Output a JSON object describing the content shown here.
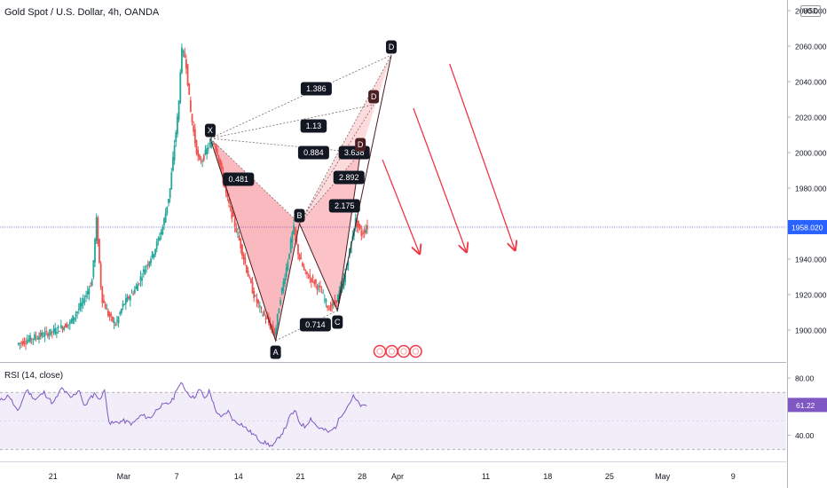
{
  "header": {
    "title": "Gold Spot / U.S. Dollar, 4h, OANDA",
    "currency": "USD",
    "rsi_title": "RSI (14, close)"
  },
  "chart_data": [
    {
      "type": "candlestick",
      "title": "Gold Spot / U.S. Dollar, 4h, OANDA",
      "y_axis": {
        "ticks": [
          "2080.000",
          "2060.000",
          "2040.000",
          "2020.000",
          "2000.000",
          "1980.000",
          "1960.000",
          "1940.000",
          "1920.000",
          "1900.000"
        ],
        "tick_values": [
          2080,
          2060,
          2040,
          2020,
          2000,
          1980,
          1960,
          1940,
          1920,
          1900
        ],
        "range": [
          1882,
          2086
        ]
      },
      "x_axis": {
        "ticks": [
          "21",
          "Mar",
          "7",
          "14",
          "21",
          "28",
          "Apr",
          "11",
          "18",
          "25",
          "May",
          "9"
        ],
        "tick_days": [
          -8,
          0,
          6,
          13,
          20,
          27,
          31,
          41,
          48,
          55,
          61,
          69
        ],
        "range_days": [
          -14,
          75
        ]
      },
      "last_price": "1958.020",
      "last_price_value": 1958.02,
      "price_path": [
        [
          -12.0,
          1892
        ],
        [
          -10.0,
          1896
        ],
        [
          -8.0,
          1899
        ],
        [
          -6.0,
          1904
        ],
        [
          -4.5,
          1916
        ],
        [
          -3.5,
          1928
        ],
        [
          -3.0,
          1962
        ],
        [
          -2.4,
          1918
        ],
        [
          -1.6,
          1908
        ],
        [
          -0.8,
          1903
        ],
        [
          0.0,
          1914
        ],
        [
          1.5,
          1924
        ],
        [
          2.5,
          1935
        ],
        [
          3.5,
          1944
        ],
        [
          4.5,
          1958
        ],
        [
          5.3,
          1978
        ],
        [
          5.8,
          2003
        ],
        [
          6.3,
          2025
        ],
        [
          6.6,
          2058
        ],
        [
          7.1,
          2053
        ],
        [
          7.6,
          2025
        ],
        [
          8.1,
          2008
        ],
        [
          8.6,
          1994
        ],
        [
          9.2,
          1998
        ],
        [
          9.7,
          2004
        ],
        [
          10.3,
          2006
        ],
        [
          10.8,
          1998
        ],
        [
          11.3,
          1985
        ],
        [
          11.8,
          1974
        ],
        [
          12.5,
          1962
        ],
        [
          13.2,
          1950
        ],
        [
          14.0,
          1934
        ],
        [
          14.8,
          1920
        ],
        [
          15.6,
          1911
        ],
        [
          16.4,
          1905
        ],
        [
          17.2,
          1897
        ],
        [
          17.8,
          1918
        ],
        [
          18.5,
          1935
        ],
        [
          19.3,
          1958
        ],
        [
          19.9,
          1942
        ],
        [
          20.6,
          1932
        ],
        [
          21.5,
          1928
        ],
        [
          22.4,
          1922
        ],
        [
          23.3,
          1912
        ],
        [
          24.1,
          1916
        ],
        [
          24.9,
          1926
        ],
        [
          25.6,
          1943
        ],
        [
          26.3,
          1962
        ],
        [
          27.0,
          1954
        ],
        [
          27.6,
          1958
        ]
      ],
      "harmonic_pattern": {
        "points": [
          {
            "label": "X",
            "day": 9.8,
            "price": 2008
          },
          {
            "label": "A",
            "day": 17.2,
            "price": 1894
          },
          {
            "label": "B",
            "day": 19.9,
            "price": 1960
          },
          {
            "label": "C",
            "day": 24.2,
            "price": 1911
          },
          {
            "label": "D",
            "day": 26.8,
            "price": 2000
          },
          {
            "label": "D",
            "day": 28.3,
            "price": 2027
          },
          {
            "label": "D",
            "day": 30.3,
            "price": 2055
          }
        ],
        "ratios": [
          {
            "label": "1.386",
            "day": 21.8,
            "price": 2036
          },
          {
            "label": "1.13",
            "day": 21.5,
            "price": 2015
          },
          {
            "label": "0.884",
            "day": 21.5,
            "price": 2000
          },
          {
            "label": "3.638",
            "day": 26.1,
            "price": 2000
          },
          {
            "label": "2.892",
            "day": 25.5,
            "price": 1986
          },
          {
            "label": "2.175",
            "day": 25.0,
            "price": 1970
          },
          {
            "label": "0.481",
            "day": 13.0,
            "price": 1985
          },
          {
            "label": "0.714",
            "day": 21.7,
            "price": 1903
          }
        ]
      },
      "projection_arrows": [
        {
          "from": [
            29.3,
            1996
          ],
          "to": [
            33.5,
            1943
          ]
        },
        {
          "from": [
            32.8,
            2025
          ],
          "to": [
            38.8,
            1944
          ]
        },
        {
          "from": [
            36.9,
            2050
          ],
          "to": [
            44.3,
            1945
          ]
        }
      ]
    },
    {
      "type": "line",
      "title": "RSI (14, close)",
      "y_axis": {
        "ticks": [
          "80.00",
          "40.00"
        ],
        "tick_values": [
          80,
          40
        ],
        "range": [
          23,
          90
        ]
      },
      "bands": [
        70,
        30
      ],
      "last_value": "61.22",
      "last_value_number": 61.22,
      "rsi_path": [
        [
          -14.0,
          64
        ],
        [
          -13.0,
          68
        ],
        [
          -12.0,
          56
        ],
        [
          -11.0,
          72
        ],
        [
          -10.0,
          65
        ],
        [
          -9.0,
          70
        ],
        [
          -8.0,
          62
        ],
        [
          -7.0,
          73
        ],
        [
          -6.0,
          66
        ],
        [
          -5.0,
          72
        ],
        [
          -4.5,
          60
        ],
        [
          -4.0,
          64
        ],
        [
          -3.2,
          70
        ],
        [
          -2.8,
          64
        ],
        [
          -2.2,
          72
        ],
        [
          -1.6,
          48
        ],
        [
          -0.8,
          49
        ],
        [
          0.0,
          50
        ],
        [
          1.0,
          48
        ],
        [
          2.0,
          54
        ],
        [
          3.0,
          52
        ],
        [
          4.0,
          60
        ],
        [
          5.0,
          62
        ],
        [
          5.6,
          65
        ],
        [
          6.0,
          73
        ],
        [
          6.6,
          76
        ],
        [
          7.2,
          70
        ],
        [
          7.9,
          66
        ],
        [
          8.6,
          72
        ],
        [
          9.3,
          65
        ],
        [
          9.7,
          72
        ],
        [
          10.3,
          59
        ],
        [
          11.0,
          52
        ],
        [
          11.8,
          57
        ],
        [
          12.5,
          50
        ],
        [
          13.3,
          48
        ],
        [
          14.0,
          44
        ],
        [
          14.8,
          40
        ],
        [
          15.5,
          36
        ],
        [
          16.3,
          34
        ],
        [
          16.9,
          32
        ],
        [
          17.5,
          38
        ],
        [
          18.2,
          44
        ],
        [
          18.9,
          54
        ],
        [
          19.4,
          57
        ],
        [
          19.9,
          49
        ],
        [
          20.5,
          46
        ],
        [
          21.2,
          52
        ],
        [
          21.9,
          46
        ],
        [
          22.6,
          44
        ],
        [
          23.3,
          42
        ],
        [
          24.0,
          46
        ],
        [
          24.6,
          54
        ],
        [
          25.3,
          60
        ],
        [
          26.0,
          67
        ],
        [
          26.5,
          63
        ],
        [
          27.0,
          60
        ],
        [
          27.6,
          61
        ]
      ]
    }
  ]
}
